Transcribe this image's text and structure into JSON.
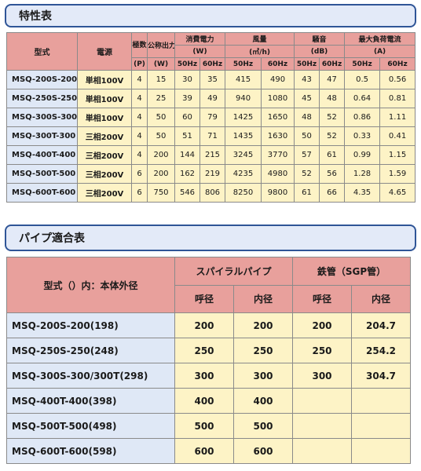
{
  "section1": {
    "title": "特性表"
  },
  "spec_table": {
    "headers": {
      "model": "型式",
      "power": "電源",
      "poles": "極数",
      "poles_unit": "(P)",
      "output": "公称出力",
      "output_unit": "(W)",
      "consumption": "消費電力",
      "consumption_unit": "(W)",
      "airflow": "風量",
      "airflow_unit": "(㎥/h)",
      "noise": "騒音",
      "noise_unit": "(dB)",
      "current": "最大負荷電流",
      "current_unit": "(A)",
      "hz50": "50Hz",
      "hz60": "60Hz"
    },
    "rows": [
      [
        "MSQ-200S-200",
        "単相100V",
        "4",
        "15",
        "30",
        "35",
        "415",
        "490",
        "43",
        "47",
        "0.5",
        "0.56"
      ],
      [
        "MSQ-250S-250",
        "単相100V",
        "4",
        "25",
        "39",
        "49",
        "940",
        "1080",
        "45",
        "48",
        "0.64",
        "0.81"
      ],
      [
        "MSQ-300S-300",
        "単相100V",
        "4",
        "50",
        "60",
        "79",
        "1425",
        "1650",
        "48",
        "52",
        "0.86",
        "1.11"
      ],
      [
        "MSQ-300T-300",
        "三相200V",
        "4",
        "50",
        "51",
        "71",
        "1435",
        "1630",
        "50",
        "52",
        "0.33",
        "0.41"
      ],
      [
        "MSQ-400T-400",
        "三相200V",
        "4",
        "200",
        "144",
        "215",
        "3245",
        "3770",
        "57",
        "61",
        "0.99",
        "1.15"
      ],
      [
        "MSQ-500T-500",
        "三相200V",
        "6",
        "200",
        "162",
        "219",
        "4235",
        "4980",
        "52",
        "56",
        "1.28",
        "1.59"
      ],
      [
        "MSQ-600T-600",
        "三相200V",
        "6",
        "750",
        "546",
        "806",
        "8250",
        "9800",
        "61",
        "66",
        "4.35",
        "4.65"
      ]
    ]
  },
  "section2": {
    "title": "パイプ適合表"
  },
  "pipe_table": {
    "headers": {
      "model": "型式（）内：本体外径",
      "spiral": "スパイラルパイプ",
      "steel": "鉄管（SGP管）",
      "nominal": "呼径",
      "inner": "内径"
    },
    "rows": [
      [
        "MSQ-200S-200(198)",
        "200",
        "200",
        "200",
        "204.7"
      ],
      [
        "MSQ-250S-250(248)",
        "250",
        "250",
        "250",
        "254.2"
      ],
      [
        "MSQ-300S-300/300T(298)",
        "300",
        "300",
        "300",
        "304.7"
      ],
      [
        "MSQ-400T-400(398)",
        "400",
        "400",
        "",
        ""
      ],
      [
        "MSQ-500T-500(498)",
        "500",
        "500",
        "",
        ""
      ],
      [
        "MSQ-600T-600(598)",
        "600",
        "600",
        "",
        ""
      ]
    ]
  }
}
